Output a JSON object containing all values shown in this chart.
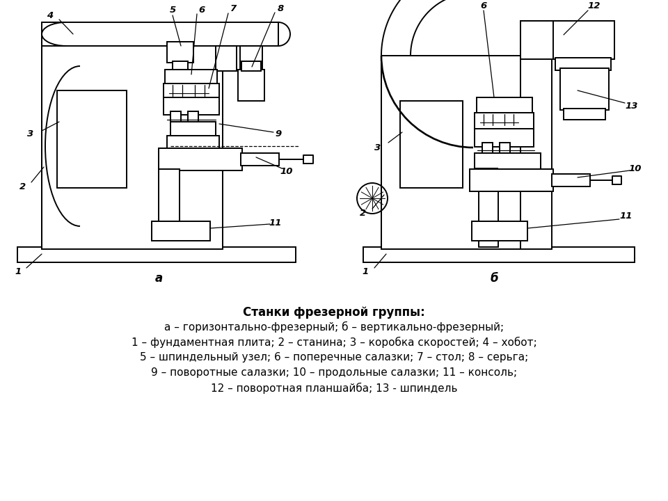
{
  "title_line1": "Станки фрезерной группы:",
  "title_line2": "а – горизонтально-фрезерный; б – вертикально-фрезерный;",
  "title_line3": "1 – фундаментная плита; 2 – станина; 3 – коробка скоростей; 4 – хобот;",
  "title_line4": "5 – шпиндельный узел; 6 – поперечные салазки; 7 – стол; 8 – серьга;",
  "title_line5": "9 – поворотные салазки; 10 – продольные салазки; 11 – консоль;",
  "title_line6": "12 – поворотная планшайба; 13 - шпиндель",
  "label_a": "а",
  "label_b": "б",
  "bg_color": "#ffffff",
  "line_color": "#000000"
}
